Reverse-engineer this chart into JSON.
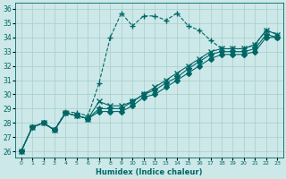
{
  "xlabel": "Humidex (Indice chaleur)",
  "bg_color": "#cce8e8",
  "grid_color": "#aacccc",
  "line_color": "#006666",
  "xlim": [
    -0.5,
    23.5
  ],
  "ylim": [
    25.6,
    36.4
  ],
  "yticks": [
    26,
    27,
    28,
    29,
    30,
    31,
    32,
    33,
    34,
    35,
    36
  ],
  "xticks": [
    0,
    1,
    2,
    3,
    4,
    5,
    6,
    7,
    8,
    9,
    10,
    11,
    12,
    13,
    14,
    15,
    16,
    17,
    18,
    19,
    20,
    21,
    22,
    23
  ],
  "series": [
    [
      26.0,
      27.7,
      28.0,
      27.5,
      28.8,
      28.7,
      28.5,
      30.8,
      34.0,
      35.7,
      34.8,
      35.5,
      35.5,
      35.2,
      35.7,
      34.8,
      34.5,
      33.8,
      33.2,
      33.2,
      33.2,
      33.5,
      34.5,
      34.2
    ],
    [
      26.0,
      27.7,
      28.0,
      27.5,
      28.7,
      28.5,
      28.3,
      29.5,
      29.2,
      29.2,
      29.5,
      30.0,
      30.5,
      31.0,
      31.5,
      32.0,
      32.5,
      33.0,
      33.2,
      33.2,
      33.2,
      33.5,
      34.5,
      34.2
    ],
    [
      26.0,
      27.7,
      28.0,
      27.5,
      28.7,
      28.5,
      28.3,
      29.0,
      29.0,
      29.0,
      29.5,
      30.0,
      30.3,
      30.8,
      31.2,
      31.8,
      32.3,
      32.8,
      33.0,
      33.0,
      33.0,
      33.2,
      34.2,
      34.0
    ],
    [
      26.0,
      27.7,
      28.0,
      27.5,
      28.7,
      28.5,
      28.3,
      28.8,
      28.8,
      28.8,
      29.2,
      29.8,
      30.0,
      30.5,
      31.0,
      31.5,
      32.0,
      32.5,
      32.8,
      32.8,
      32.8,
      33.0,
      34.0,
      34.0
    ]
  ],
  "markers": [
    "+",
    "x",
    "*",
    "D"
  ],
  "linestyles": [
    "--",
    "-",
    "-",
    "-"
  ],
  "markersizes": [
    5,
    4,
    4,
    3
  ],
  "linewidths": [
    0.8,
    0.8,
    0.8,
    0.8
  ]
}
